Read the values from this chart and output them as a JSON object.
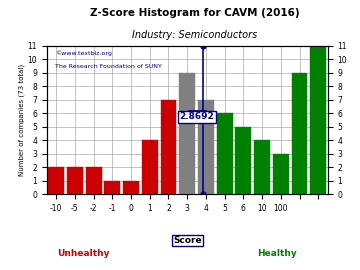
{
  "title": "Z-Score Histogram for CAVM (2016)",
  "subtitle": "Industry: Semiconductors",
  "xlabel": "Score",
  "ylabel": "Number of companies (73 total)",
  "watermark1": "©www.textbiz.org",
  "watermark2": "The Research Foundation of SUNY",
  "zlabel": "2.8692",
  "zvalue": 2.8692,
  "bars": [
    {
      "bin": 0,
      "height": 2,
      "color": "#cc0000"
    },
    {
      "bin": 1,
      "height": 2,
      "color": "#cc0000"
    },
    {
      "bin": 2,
      "height": 2,
      "color": "#cc0000"
    },
    {
      "bin": 3,
      "height": 1,
      "color": "#cc0000"
    },
    {
      "bin": 4,
      "height": 1,
      "color": "#cc0000"
    },
    {
      "bin": 5,
      "height": 4,
      "color": "#cc0000"
    },
    {
      "bin": 6,
      "height": 7,
      "color": "#cc0000"
    },
    {
      "bin": 7,
      "height": 9,
      "color": "#808080"
    },
    {
      "bin": 8,
      "height": 7,
      "color": "#808080"
    },
    {
      "bin": 9,
      "height": 6,
      "color": "#008000"
    },
    {
      "bin": 10,
      "height": 5,
      "color": "#008000"
    },
    {
      "bin": 11,
      "height": 4,
      "color": "#008000"
    },
    {
      "bin": 12,
      "height": 3,
      "color": "#008000"
    },
    {
      "bin": 13,
      "height": 9,
      "color": "#008000"
    },
    {
      "bin": 14,
      "height": 11,
      "color": "#008000"
    }
  ],
  "xtick_bins": [
    0,
    1,
    2,
    3,
    4,
    5,
    6,
    7,
    8,
    9,
    10,
    11,
    12,
    13,
    14
  ],
  "xtick_labels": [
    "-10",
    "-5",
    "-2",
    "-1",
    "0",
    "1",
    "2",
    "3",
    "4",
    "5",
    "6",
    "10",
    "100",
    "",
    ""
  ],
  "ytick_positions": [
    0,
    1,
    2,
    3,
    4,
    5,
    6,
    7,
    8,
    9,
    10,
    11
  ],
  "ylim": [
    0,
    11
  ],
  "xlim": [
    -0.5,
    14.5
  ],
  "bg_color": "#ffffff",
  "grid_color": "#aaaaaa",
  "unhealthy_color": "#cc0000",
  "healthy_color": "#008000",
  "line_color": "#000099",
  "dot_color": "#000099",
  "bar_width": 0.85
}
